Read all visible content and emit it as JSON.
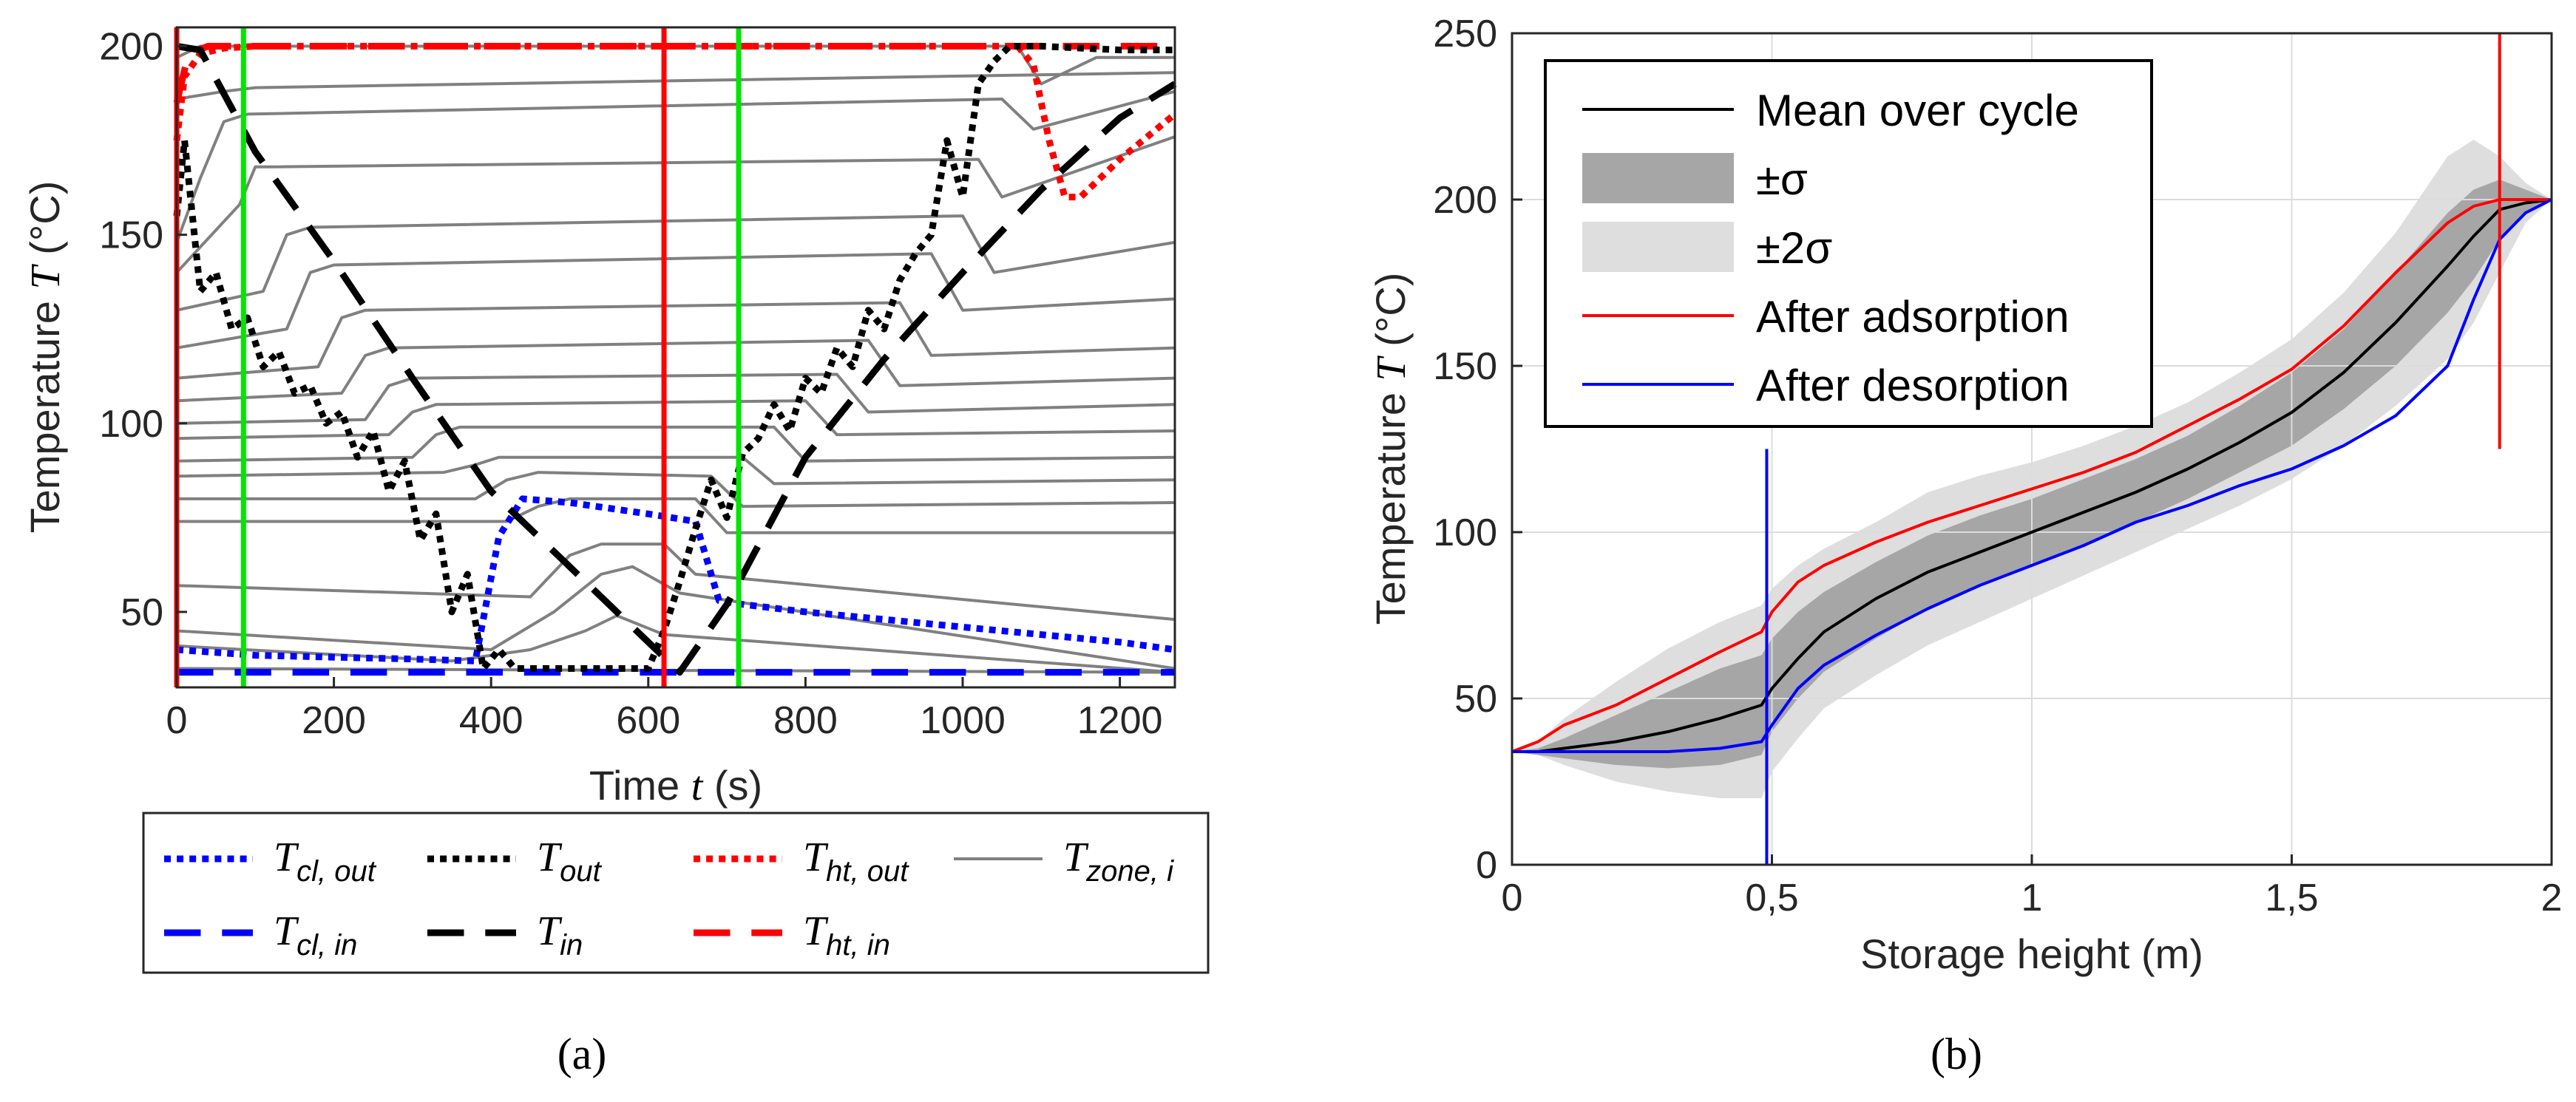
{
  "chart_data": [
    {
      "type": "line",
      "panel_label": "(a)",
      "xlabel": {
        "name": "Time",
        "symbol": "t",
        "unit": "(s)"
      },
      "ylabel": {
        "name": "Temperature",
        "symbol": "T",
        "unit": "(°C)"
      },
      "xlim": [
        0,
        1270
      ],
      "ylim": [
        30,
        205
      ],
      "xticks": [
        0,
        200,
        400,
        600,
        800,
        1000,
        1200
      ],
      "yticks": [
        50,
        100,
        150,
        200
      ],
      "vlines": [
        {
          "x": 0,
          "color": "#ff0000"
        },
        {
          "x": 85,
          "color": "#00e600"
        },
        {
          "x": 620,
          "color": "#ff0000"
        },
        {
          "x": 715,
          "color": "#00e600"
        }
      ],
      "legend": [
        {
          "symbol": "T",
          "sub": "cl, out",
          "color": "#0000ff",
          "dash": "dotted"
        },
        {
          "symbol": "T",
          "sub": "out",
          "color": "#000000",
          "dash": "dotted"
        },
        {
          "symbol": "T",
          "sub": "ht, out",
          "color": "#ff0000",
          "dash": "dotted"
        },
        {
          "symbol": "T",
          "sub": "zone, i",
          "color": "#808080",
          "dash": "solid"
        },
        {
          "symbol": "T",
          "sub": "cl, in",
          "color": "#0000ff",
          "dash": "dashed"
        },
        {
          "symbol": "T",
          "sub": "in",
          "color": "#000000",
          "dash": "dashed"
        },
        {
          "symbol": "T",
          "sub": "ht, in",
          "color": "#ff0000",
          "dash": "dashed"
        }
      ],
      "series": [
        {
          "name": "T_in",
          "color": "#000000",
          "dash": "dashed",
          "x": [
            0,
            30,
            100,
            200,
            300,
            400,
            500,
            600,
            640,
            700,
            800,
            900,
            1000,
            1100,
            1200,
            1270
          ],
          "y": [
            200,
            199,
            172,
            143,
            112,
            82,
            62,
            42,
            34,
            52,
            91,
            117,
            140,
            162,
            181,
            190
          ]
        },
        {
          "name": "T_out",
          "color": "#000000",
          "dash": "dotted",
          "x": [
            0,
            10,
            30,
            50,
            70,
            90,
            110,
            130,
            150,
            170,
            190,
            210,
            230,
            250,
            270,
            290,
            310,
            330,
            350,
            370,
            390,
            410,
            430,
            450,
            600,
            620,
            640,
            660,
            680,
            700,
            720,
            740,
            760,
            780,
            800,
            820,
            840,
            860,
            880,
            900,
            920,
            940,
            960,
            980,
            1000,
            1020,
            1040,
            1060,
            1080,
            1100,
            1200,
            1270
          ],
          "y": [
            155,
            175,
            135,
            140,
            125,
            128,
            115,
            119,
            108,
            110,
            100,
            103,
            91,
            98,
            82,
            90,
            69,
            76,
            50,
            60,
            35,
            40,
            35,
            35,
            35,
            45,
            58,
            72,
            85,
            75,
            92,
            96,
            105,
            98,
            112,
            108,
            120,
            115,
            130,
            125,
            138,
            145,
            150,
            175,
            160,
            190,
            196,
            200,
            200,
            200,
            199,
            199
          ]
        },
        {
          "name": "T_cl,out",
          "color": "#0000ff",
          "dash": "dotted",
          "x": [
            0,
            100,
            200,
            300,
            380,
            410,
            440,
            500,
            600,
            660,
            690,
            720,
            800,
            900,
            1000,
            1100,
            1200,
            1270
          ],
          "y": [
            40,
            38.5,
            38,
            37.5,
            37,
            70,
            80,
            79,
            76,
            74,
            53,
            52,
            50,
            48,
            46,
            44,
            42,
            40
          ]
        },
        {
          "name": "T_cl,in",
          "color": "#0000ff",
          "dash": "dashed",
          "x": [
            0,
            1270
          ],
          "y": [
            34,
            34
          ]
        },
        {
          "name": "T_ht,out",
          "color": "#ff0000",
          "dash": "dotted",
          "x": [
            0,
            10,
            30,
            60,
            100,
            300,
            600,
            900,
            1070,
            1090,
            1110,
            1130,
            1150,
            1200,
            1270
          ],
          "y": [
            175,
            192,
            198,
            199.5,
            200,
            200,
            200,
            200,
            200,
            195,
            175,
            160,
            160,
            170,
            182
          ]
        },
        {
          "name": "T_ht,in",
          "color": "#ff0000",
          "dash": "dashed",
          "x": [
            0,
            15,
            40,
            1270
          ],
          "y": [
            185,
            198,
            200,
            200
          ]
        },
        {
          "name": "T_zone,i",
          "color": "#808080",
          "dash": "solid",
          "lines": [
            {
              "x": [
                0,
                30,
                60,
                1070,
                1100,
                1170,
                1270
              ],
              "y": [
                197,
                200,
                200,
                200,
                190,
                197,
                197
              ]
            },
            {
              "x": [
                0,
                60,
                100,
                1270
              ],
              "y": [
                186,
                188,
                189,
                193
              ]
            },
            {
              "x": [
                0,
                30,
                60,
                90,
                1050,
                1090,
                1270
              ],
              "y": [
                148,
                165,
                180,
                182,
                186,
                178,
                188
              ]
            },
            {
              "x": [
                0,
                80,
                100,
                120,
                1020,
                1050,
                1270
              ],
              "y": [
                140,
                158,
                168,
                168,
                170,
                160,
                176
              ]
            },
            {
              "x": [
                0,
                110,
                140,
                170,
                1000,
                1040,
                1270
              ],
              "y": [
                130,
                135,
                150,
                152,
                155,
                140,
                148
              ]
            },
            {
              "x": [
                0,
                140,
                170,
                200,
                960,
                1000,
                1270
              ],
              "y": [
                120,
                125,
                140,
                142,
                145,
                130,
                133
              ]
            },
            {
              "x": [
                0,
                180,
                210,
                240,
                920,
                960,
                1270
              ],
              "y": [
                112,
                115,
                128,
                130,
                132,
                118,
                120
              ]
            },
            {
              "x": [
                0,
                210,
                240,
                270,
                880,
                920,
                1270
              ],
              "y": [
                106,
                108,
                118,
                120,
                122,
                110,
                112
              ]
            },
            {
              "x": [
                0,
                240,
                270,
                300,
                840,
                880,
                1270
              ],
              "y": [
                100,
                101,
                110,
                112,
                113,
                103,
                105
              ]
            },
            {
              "x": [
                0,
                270,
                300,
                330,
                800,
                840,
                1270
              ],
              "y": [
                96,
                97,
                103,
                105,
                106,
                97,
                98
              ]
            },
            {
              "x": [
                0,
                300,
                330,
                360,
                760,
                800,
                1270
              ],
              "y": [
                90,
                91,
                97,
                99,
                99,
                90,
                91
              ]
            },
            {
              "x": [
                0,
                340,
                380,
                410,
                720,
                760,
                1270
              ],
              "y": [
                86,
                87,
                89,
                91,
                91,
                84,
                85
              ]
            },
            {
              "x": [
                0,
                380,
                420,
                460,
                680,
                720,
                1270
              ],
              "y": [
                80,
                80,
                85,
                87,
                86,
                78,
                79
              ]
            },
            {
              "x": [
                0,
                420,
                460,
                500,
                660,
                700,
                1270
              ],
              "y": [
                74,
                74,
                78,
                80,
                80,
                71,
                71
              ]
            },
            {
              "x": [
                0,
                450,
                500,
                540,
                620,
                660,
                1270
              ],
              "y": [
                57,
                54,
                65,
                68,
                68,
                60,
                48
              ]
            },
            {
              "x": [
                0,
                400,
                480,
                540,
                580,
                640,
                1270
              ],
              "y": [
                45,
                40,
                50,
                60,
                62,
                55,
                35
              ]
            },
            {
              "x": [
                0,
                350,
                450,
                520,
                560,
                620,
                1270
              ],
              "y": [
                41,
                37,
                40,
                45,
                49,
                44,
                34
              ]
            },
            {
              "x": [
                0,
                1270
              ],
              "y": [
                35,
                34
              ]
            }
          ]
        }
      ]
    },
    {
      "type": "line",
      "panel_label": "(b)",
      "xlabel": "Storage height (m)",
      "ylabel": {
        "name": "Temperature",
        "symbol": "T",
        "unit": "(°C)"
      },
      "xlim": [
        0,
        2
      ],
      "ylim": [
        0,
        250
      ],
      "xticks": [
        0,
        0.5,
        1,
        1.5,
        2
      ],
      "xticklabels": [
        "0",
        "0,5",
        "1",
        "1,5",
        "2"
      ],
      "yticks": [
        0,
        50,
        100,
        150,
        200,
        250
      ],
      "grid": true,
      "legend_position": "top-left",
      "vlines": [
        {
          "x": 0.49,
          "y": [
            0,
            125
          ],
          "color": "#0000ff"
        },
        {
          "x": 1.9,
          "y": [
            125,
            250
          ],
          "color": "#ff0000"
        }
      ],
      "legend": [
        {
          "label": "Mean over cycle",
          "color": "#000000",
          "kind": "line"
        },
        {
          "label": "±σ",
          "color": "#a6a6a6",
          "kind": "patch"
        },
        {
          "label": "±2σ",
          "color": "#dedede",
          "kind": "patch"
        },
        {
          "label": "After adsorption",
          "color": "#ff0000",
          "kind": "line"
        },
        {
          "label": "After desorption",
          "color": "#0000ff",
          "kind": "line"
        }
      ],
      "x": [
        0,
        0.05,
        0.1,
        0.2,
        0.3,
        0.4,
        0.48,
        0.5,
        0.55,
        0.6,
        0.7,
        0.8,
        0.9,
        1.0,
        1.1,
        1.2,
        1.3,
        1.4,
        1.5,
        1.6,
        1.7,
        1.8,
        1.85,
        1.9,
        1.95,
        2.0
      ],
      "series": [
        {
          "name": "Mean over cycle",
          "color": "#000000",
          "y": [
            34,
            34,
            35,
            37,
            40,
            44,
            48,
            53,
            62,
            70,
            80,
            88,
            94,
            100,
            106,
            112,
            119,
            127,
            136,
            148,
            163,
            180,
            189,
            197,
            199,
            200
          ]
        },
        {
          "name": "After adsorption",
          "color": "#ff0000",
          "y": [
            34,
            37,
            42,
            48,
            56,
            64,
            70,
            76,
            85,
            90,
            97,
            103,
            108,
            113,
            118,
            124,
            132,
            140,
            149,
            162,
            178,
            193,
            198,
            200,
            200,
            200
          ]
        },
        {
          "name": "After desorption",
          "color": "#0000ff",
          "y": [
            34,
            34,
            34,
            34,
            34,
            35,
            37,
            42,
            53,
            60,
            69,
            77,
            84,
            90,
            96,
            103,
            108,
            114,
            119,
            126,
            135,
            150,
            170,
            188,
            196,
            200
          ]
        },
        {
          "name": "±σ",
          "color": "#a6a6a6",
          "band": true,
          "lower": [
            34,
            33,
            32,
            30,
            29,
            30,
            33,
            40,
            50,
            58,
            68,
            77,
            84,
            90,
            96,
            103,
            110,
            118,
            126,
            137,
            150,
            166,
            176,
            188,
            196,
            200
          ],
          "upper": [
            34,
            35,
            38,
            45,
            52,
            59,
            63,
            68,
            76,
            82,
            91,
            99,
            105,
            110,
            116,
            122,
            129,
            138,
            148,
            161,
            178,
            196,
            203,
            206,
            203,
            200
          ]
        },
        {
          "name": "±2σ",
          "color": "#dedede",
          "band": true,
          "lower": [
            34,
            33,
            30,
            25,
            22,
            20,
            20,
            28,
            38,
            47,
            57,
            66,
            73,
            80,
            87,
            94,
            101,
            108,
            116,
            126,
            138,
            152,
            163,
            178,
            193,
            200
          ]
        },
        {
          "name": "±2σ-upper",
          "color": "#dedede",
          "band": true,
          "upper": [
            34,
            37,
            44,
            55,
            65,
            73,
            78,
            83,
            90,
            95,
            103,
            112,
            117,
            121,
            126,
            132,
            139,
            148,
            158,
            172,
            190,
            213,
            218,
            213,
            205,
            200
          ]
        }
      ]
    }
  ]
}
